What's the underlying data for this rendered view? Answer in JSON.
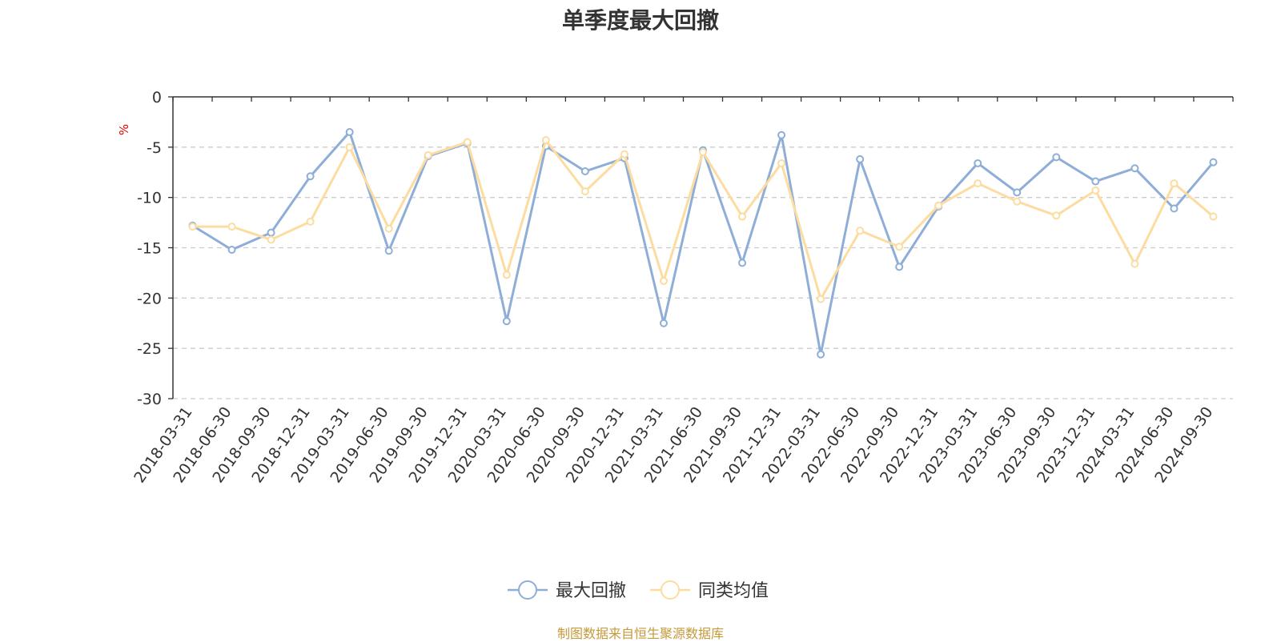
{
  "chart_data": {
    "type": "line",
    "title": "单季度最大回撤",
    "ylabel": "%",
    "ylim": [
      -30,
      0
    ],
    "yticks": [
      0,
      -5,
      -10,
      -15,
      -20,
      -25,
      -30
    ],
    "grid": true,
    "legend_position": "bottom-center",
    "categories": [
      "2018-03-31",
      "2018-06-30",
      "2018-09-30",
      "2018-12-31",
      "2019-03-31",
      "2019-06-30",
      "2019-09-30",
      "2019-12-31",
      "2020-03-31",
      "2020-06-30",
      "2020-09-30",
      "2020-12-31",
      "2021-03-31",
      "2021-06-30",
      "2021-09-30",
      "2021-12-31",
      "2022-03-31",
      "2022-06-30",
      "2022-09-30",
      "2022-12-31",
      "2023-03-31",
      "2023-06-30",
      "2023-09-30",
      "2023-12-31",
      "2024-03-31",
      "2024-06-30",
      "2024-09-30"
    ],
    "series": [
      {
        "name": "最大回撤",
        "color": "#8eaed8",
        "values": [
          -12.8,
          -15.2,
          -13.5,
          -7.9,
          -3.5,
          -15.3,
          -5.9,
          -4.6,
          -22.3,
          -4.9,
          -7.4,
          -6.1,
          -22.5,
          -5.3,
          -16.5,
          -3.8,
          -25.6,
          -6.2,
          -16.9,
          -10.9,
          -6.6,
          -9.5,
          -6.0,
          -8.4,
          -7.1,
          -11.1,
          -6.5
        ]
      },
      {
        "name": "同类均值",
        "color": "#fcdca0",
        "values": [
          -12.9,
          -12.9,
          -14.2,
          -12.4,
          -5.0,
          -13.1,
          -5.8,
          -4.5,
          -17.7,
          -4.3,
          -9.4,
          -5.7,
          -18.3,
          -5.5,
          -11.9,
          -6.6,
          -20.1,
          -13.3,
          -14.9,
          -10.8,
          -8.6,
          -10.4,
          -11.8,
          -9.3,
          -16.6,
          -8.6,
          -11.9
        ]
      }
    ]
  },
  "source_text": "制图数据来自恒生聚源数据库",
  "colors": {
    "source": "#c49a3a",
    "unit": "#e00000",
    "axis": "#333333",
    "grid": "#cccccc"
  }
}
